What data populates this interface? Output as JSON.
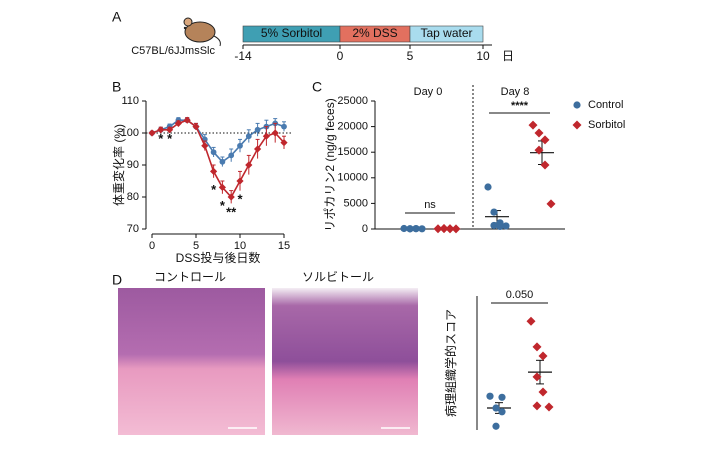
{
  "panel_labels": [
    "A",
    "B",
    "C",
    "D"
  ],
  "timeline": {
    "strain": "C57BL/6JJmsSlc",
    "segments": [
      {
        "label": "5% Sorbitol",
        "color": "#3f9fb3"
      },
      {
        "label": "2% DSS",
        "color": "#e2705f"
      },
      {
        "label": "Tap water",
        "color": "#a9dcee"
      }
    ],
    "ticks": [
      -14,
      0,
      5,
      10
    ],
    "unit": "日"
  },
  "histology": {
    "titles": [
      "コントロール",
      "ソルビトール"
    ]
  },
  "chart_data": [
    {
      "type": "line",
      "y_label": "体重変化率 (%)",
      "x_label": "DSS投与後日数",
      "x": [
        0,
        1,
        2,
        3,
        4,
        5,
        6,
        7,
        8,
        9,
        10,
        11,
        12,
        13,
        14,
        15
      ],
      "series": [
        {
          "color": "#4a7bb0",
          "marker": "circle",
          "values": [
            100,
            101,
            102,
            104,
            104,
            102,
            98,
            94,
            91,
            93,
            96,
            99,
            101,
            102,
            103,
            102
          ],
          "errors": [
            0.5,
            0.8,
            0.8,
            0.8,
            0.8,
            1,
            1.5,
            1.5,
            1.5,
            2,
            2,
            2,
            2,
            2,
            1.5,
            1.5
          ]
        },
        {
          "color": "#c0272d",
          "marker": "diamond",
          "values": [
            100,
            101,
            101,
            103,
            104,
            102,
            96,
            88,
            83,
            80,
            85,
            90,
            95,
            99,
            100,
            97
          ],
          "errors": [
            0.5,
            0.8,
            0.8,
            0.8,
            0.8,
            1,
            1.5,
            2,
            2,
            2,
            3,
            3,
            3,
            3,
            3,
            2
          ]
        }
      ],
      "reference_line": 100,
      "xlim": [
        0,
        15
      ],
      "xticks": [
        0,
        5,
        10,
        15
      ],
      "ylim": [
        70,
        110
      ],
      "yticks": [
        70,
        80,
        90,
        100,
        110
      ],
      "annotations": [
        {
          "text": "*",
          "x": 1,
          "y": 98
        },
        {
          "text": "*",
          "x": 2,
          "y": 98
        },
        {
          "text": "*",
          "x": 7,
          "y": 82
        },
        {
          "text": "*",
          "x": 8,
          "y": 77
        },
        {
          "text": "**",
          "x": 9,
          "y": 75
        },
        {
          "text": "*",
          "x": 10,
          "y": 79
        }
      ]
    },
    {
      "type": "strip",
      "y_label": "リポカリン2 (ng/g feces)",
      "groups": [
        "Day 0",
        "Day 8"
      ],
      "series": [
        {
          "name": "Control",
          "color": "#3d6e9e",
          "marker": "circle",
          "values": [
            [
              100,
              50,
              80,
              30,
              60,
              40
            ],
            [
              8200,
              3300,
              1200,
              700,
              500,
              600
            ]
          ],
          "mean": [
            60,
            2400
          ],
          "sem": [
            10,
            1200
          ]
        },
        {
          "name": "Sorbitol",
          "color": "#c0272d",
          "marker": "diamond",
          "values": [
            [
              60,
              90,
              40,
              70,
              50,
              30
            ],
            [
              20300,
              18750,
              17400,
              15400,
              12500,
              4900
            ]
          ],
          "mean": [
            57,
            14900
          ],
          "sem": [
            9,
            2300
          ]
        }
      ],
      "comparisons": [
        "ns",
        "****"
      ],
      "ylim": [
        0,
        25000
      ],
      "yticks": [
        0,
        5000,
        10000,
        15000,
        20000,
        25000
      ],
      "legend": "top-right"
    },
    {
      "type": "strip",
      "y_label": "病理組織学的スコア",
      "series": [
        {
          "color": "#3d6e9e",
          "marker": "circle",
          "values": [
            [
              6.3,
              4.1,
              3.4,
              0.7,
              6.1
            ]
          ],
          "mean": [
            4.1
          ],
          "sem": [
            1.0
          ]
        },
        {
          "color": "#c0272d",
          "marker": "diamond",
          "values": [
            [
              20.3,
              15.5,
              13.8,
              9.9,
              7.1,
              4.3,
              4.5
            ]
          ],
          "mean": [
            10.8
          ],
          "sem": [
            2.2
          ]
        }
      ],
      "comparisons": [
        "0.050"
      ],
      "ylim": [
        0,
        25
      ]
    }
  ]
}
